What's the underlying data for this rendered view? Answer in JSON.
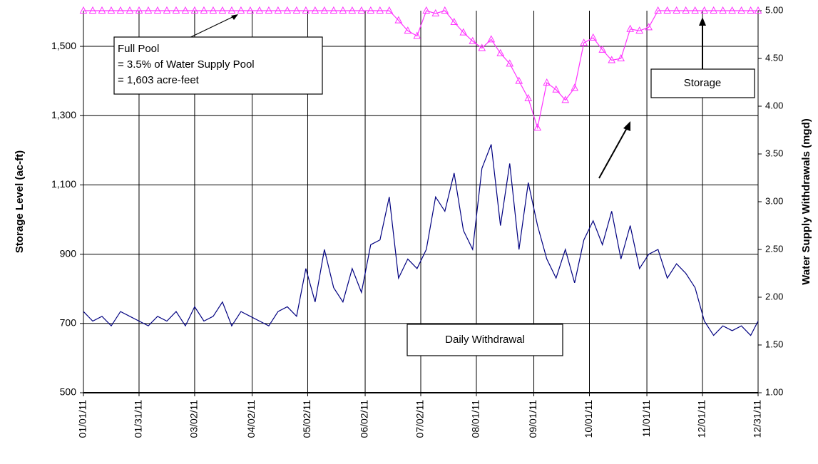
{
  "chart_data": {
    "type": "line",
    "y_label": "Storage Level (ac-ft)",
    "y2_label": "Water Supply Withdrawals (mgd)",
    "x": [
      "01/01/11",
      "01/06/11",
      "01/11/11",
      "01/16/11",
      "01/21/11",
      "01/26/11",
      "01/31/11",
      "02/05/11",
      "02/10/11",
      "02/15/11",
      "02/20/11",
      "02/25/11",
      "03/02/11",
      "03/07/11",
      "03/12/11",
      "03/17/11",
      "03/22/11",
      "03/27/11",
      "04/01/11",
      "04/06/11",
      "04/11/11",
      "04/16/11",
      "04/21/11",
      "04/26/11",
      "05/01/11",
      "05/06/11",
      "05/11/11",
      "05/16/11",
      "05/21/11",
      "05/26/11",
      "05/31/11",
      "06/05/11",
      "06/10/11",
      "06/15/11",
      "06/20/11",
      "06/25/11",
      "06/30/11",
      "07/05/11",
      "07/10/11",
      "07/15/11",
      "07/20/11",
      "07/25/11",
      "07/30/11",
      "08/04/11",
      "08/09/11",
      "08/14/11",
      "08/19/11",
      "08/24/11",
      "08/29/11",
      "09/03/11",
      "09/08/11",
      "09/13/11",
      "09/18/11",
      "09/23/11",
      "09/28/11",
      "10/03/11",
      "10/08/11",
      "10/13/11",
      "10/18/11",
      "10/23/11",
      "10/28/11",
      "11/02/11",
      "11/07/11",
      "11/12/11",
      "11/17/11",
      "11/22/11",
      "11/27/11",
      "12/02/11",
      "12/07/11",
      "12/12/11",
      "12/17/11",
      "12/22/11",
      "12/27/11",
      "12/31/11"
    ],
    "xlim": [
      "01/01/11",
      "12/31/11"
    ],
    "xticks": [
      "01/01/11",
      "01/31/11",
      "03/02/11",
      "04/02/11",
      "05/02/11",
      "06/02/11",
      "07/02/11",
      "08/01/11",
      "09/01/11",
      "10/01/11",
      "11/01/11",
      "12/01/11",
      "12/31/11"
    ],
    "ylim": [
      500,
      1603
    ],
    "yticks": [
      500,
      700,
      900,
      {
        "value": 1100,
        "label": "1,100"
      },
      {
        "value": 1300,
        "label": "1,300"
      },
      {
        "value": 1500,
        "label": "1,500"
      }
    ],
    "y2lim": [
      1,
      5
    ],
    "y2ticks": [
      {
        "value": 1,
        "label": "1.00"
      },
      {
        "value": 1.5,
        "label": "1.50"
      },
      {
        "value": 2,
        "label": "2.00"
      },
      {
        "value": 2.5,
        "label": "2.50"
      },
      {
        "value": 3,
        "label": "3.00"
      },
      {
        "value": 3.5,
        "label": "3.50"
      },
      {
        "value": 4,
        "label": "4.00"
      },
      {
        "value": 4.5,
        "label": "4.50"
      },
      {
        "value": 5,
        "label": "5.00"
      }
    ],
    "grid": true,
    "series": [
      {
        "name": "Storage",
        "color": "#ff33ff",
        "marker": "triangle",
        "values": [
          1603,
          1603,
          1603,
          1603,
          1603,
          1603,
          1603,
          1603,
          1603,
          1603,
          1603,
          1603,
          1603,
          1603,
          1603,
          1603,
          1603,
          1603,
          1603,
          1603,
          1603,
          1603,
          1603,
          1603,
          1603,
          1603,
          1603,
          1603,
          1603,
          1603,
          1603,
          1603,
          1603,
          1603,
          1575,
          1545,
          1530,
          1603,
          1595,
          1603,
          1570,
          1540,
          1515,
          1495,
          1520,
          1480,
          1450,
          1400,
          1350,
          1265,
          1395,
          1375,
          1345,
          1380,
          1510,
          1525,
          1490,
          1460,
          1465,
          1550,
          1545,
          1555,
          1603,
          1603,
          1603,
          1603,
          1603,
          1603,
          1603,
          1603,
          1603,
          1603,
          1603,
          1603
        ]
      },
      {
        "name": "Daily Withdrawal",
        "color": "#000080",
        "axis": "y2",
        "values": [
          1.85,
          1.75,
          1.8,
          1.7,
          1.85,
          1.8,
          1.75,
          1.7,
          1.8,
          1.75,
          1.85,
          1.7,
          1.9,
          1.75,
          1.8,
          1.95,
          1.7,
          1.85,
          1.8,
          1.75,
          1.7,
          1.85,
          1.9,
          1.8,
          2.3,
          1.95,
          2.5,
          2.1,
          1.95,
          2.3,
          2.05,
          2.55,
          2.6,
          3.05,
          2.2,
          2.4,
          2.3,
          2.5,
          3.05,
          2.9,
          3.3,
          2.7,
          2.5,
          3.35,
          3.6,
          2.75,
          3.4,
          2.5,
          3.2,
          2.75,
          2.4,
          2.2,
          2.5,
          2.15,
          2.6,
          2.8,
          2.55,
          2.9,
          2.4,
          2.75,
          2.3,
          2.45,
          2.5,
          2.2,
          2.35,
          2.25,
          2.1,
          1.75,
          1.6,
          1.7,
          1.65,
          1.7,
          1.6,
          1.75
        ]
      }
    ],
    "annotations": [
      {
        "lines": [
          "Full Pool",
          "= 3.5% of  Water Supply Pool",
          "= 1,603 acre-feet"
        ]
      },
      {
        "lines": [
          "Storage"
        ]
      },
      {
        "lines": [
          "Daily Withdrawal"
        ]
      }
    ]
  }
}
